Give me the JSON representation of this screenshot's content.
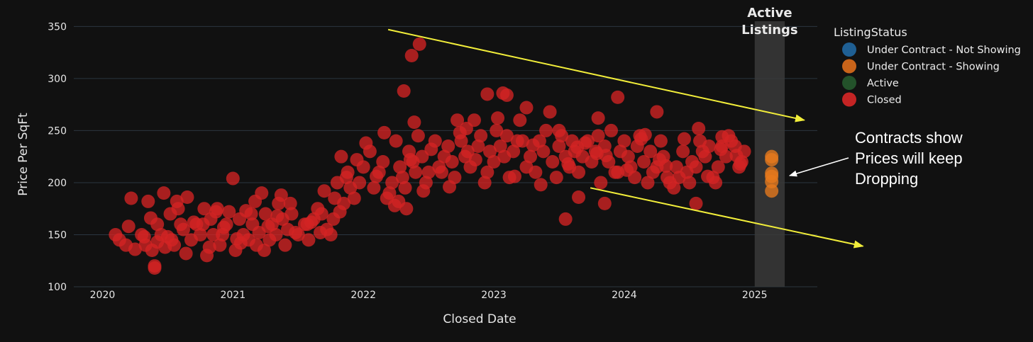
{
  "chart_data": {
    "type": "scatter",
    "title": "",
    "xlabel": "Closed Date",
    "ylabel": "Price Per SqFt",
    "xlim": [
      2019.78,
      2025.48
    ],
    "ylim": [
      100,
      355
    ],
    "x_ticks": [
      "2020",
      "2021",
      "2022",
      "2023",
      "2024",
      "2025"
    ],
    "y_ticks": [
      "100",
      "150",
      "200",
      "250",
      "300",
      "350"
    ],
    "grid": true,
    "legend": {
      "title": "ListingStatus",
      "position": "top-right",
      "entries": [
        {
          "name": "Under Contract - Not Showing",
          "color": "#1f5f93",
          "muted": false
        },
        {
          "name": "Under Contract - Showing",
          "color": "#c9641a",
          "muted": false
        },
        {
          "name": "Active",
          "color": "#23522a",
          "muted": true
        },
        {
          "name": "Closed",
          "color": "#c42424",
          "muted": false
        }
      ]
    },
    "active_band": {
      "label_lines": [
        "Active",
        "Listings"
      ],
      "x_range": [
        2025.0,
        2025.23
      ]
    },
    "annotation": {
      "lines": [
        "Contracts show",
        "Prices will keep",
        "Dropping"
      ]
    },
    "trend_lines": [
      {
        "from": [
          2022.19,
          347
        ],
        "to": [
          2025.38,
          260
        ]
      },
      {
        "from": [
          2023.74,
          195
        ],
        "to": [
          2025.83,
          139
        ]
      }
    ],
    "series": [
      {
        "name": "Under Contract - Showing",
        "color": "#e87a1c",
        "x": [
          2025.13,
          2025.13,
          2025.13,
          2025.13,
          2025.13,
          2025.13
        ],
        "y": [
          225,
          222,
          209,
          206,
          201,
          192
        ]
      },
      {
        "name": "Closed",
        "color": "#d42424",
        "x": [
          2020.1,
          2020.13,
          2020.18,
          2020.22,
          2020.3,
          2020.33,
          2020.35,
          2020.38,
          2020.4,
          2020.42,
          2020.42,
          2020.45,
          2020.47,
          2020.5,
          2020.52,
          2020.55,
          2020.57,
          2020.6,
          2020.62,
          2020.65,
          2020.68,
          2020.72,
          2020.75,
          2020.78,
          2020.8,
          2020.83,
          2020.85,
          2020.88,
          2020.9,
          2020.92,
          2020.95,
          2020.97,
          2021.0,
          2021.02,
          2021.05,
          2021.08,
          2021.1,
          2021.12,
          2021.15,
          2021.18,
          2021.2,
          2021.22,
          2021.25,
          2021.28,
          2021.3,
          2021.33,
          2021.35,
          2021.38,
          2021.4,
          2021.42,
          2021.45,
          2021.5,
          2021.55,
          2021.58,
          2021.62,
          2021.65,
          2021.68,
          2021.72,
          2021.75,
          2021.78,
          2021.8,
          2021.83,
          2021.85,
          2021.88,
          2021.9,
          2021.93,
          2021.97,
          2022.0,
          2022.05,
          2022.08,
          2022.12,
          2022.15,
          2022.18,
          2022.2,
          2022.22,
          2022.25,
          2022.28,
          2022.3,
          2022.32,
          2022.33,
          2022.35,
          2022.38,
          2022.4,
          2022.42,
          2022.45,
          2022.48,
          2022.5,
          2022.55,
          2022.58,
          2022.62,
          2022.65,
          2022.68,
          2022.7,
          2022.72,
          2022.75,
          2022.78,
          2022.8,
          2022.82,
          2022.85,
          2022.88,
          2022.9,
          2022.95,
          2022.97,
          2023.0,
          2023.02,
          2023.05,
          2023.08,
          2023.1,
          2023.12,
          2023.15,
          2023.18,
          2023.2,
          2023.25,
          2023.28,
          2023.32,
          2023.35,
          2023.38,
          2023.4,
          2023.45,
          2023.48,
          2023.5,
          2023.52,
          2023.55,
          2023.58,
          2023.6,
          2023.62,
          2023.65,
          2023.68,
          2023.72,
          2023.75,
          2023.78,
          2023.8,
          2023.82,
          2023.85,
          2023.88,
          2023.9,
          2023.93,
          2023.97,
          2024.0,
          2024.03,
          2024.05,
          2024.08,
          2024.1,
          2024.12,
          2024.15,
          2024.18,
          2024.2,
          2024.22,
          2024.25,
          2024.28,
          2024.3,
          2024.33,
          2024.35,
          2024.38,
          2024.4,
          2024.45,
          2024.48,
          2024.5,
          2024.52,
          2024.55,
          2024.58,
          2024.6,
          2024.62,
          2024.65,
          2024.68,
          2024.7,
          2024.72,
          2024.75,
          2024.78,
          2024.8,
          2024.82,
          2024.85,
          2024.88,
          2024.9,
          2024.92,
          2020.2,
          2020.32,
          2020.48,
          2020.58,
          2020.7,
          2020.82,
          2020.93,
          2021.06,
          2021.17,
          2021.27,
          2021.37,
          2021.48,
          2021.6,
          2021.7,
          2021.82,
          2021.95,
          2022.1,
          2022.24,
          2022.36,
          2022.46,
          2022.6,
          2022.74,
          2022.86,
          2023.03,
          2023.16,
          2023.3,
          2023.43,
          2023.57,
          2023.7,
          2023.86,
          2024.02,
          2024.16,
          2024.32,
          2024.46,
          2024.64,
          2024.86,
          2020.25,
          2020.37,
          2020.53,
          2020.64,
          2020.77,
          2020.87,
          2021.03,
          2021.14,
          2021.24,
          2021.34,
          2021.44,
          2021.57,
          2021.67,
          2021.77,
          2021.87,
          2022.02,
          2022.16,
          2022.27,
          2022.39,
          2022.52,
          2022.66,
          2022.79,
          2022.93,
          2023.07,
          2023.22,
          2023.36,
          2023.5,
          2023.64,
          2023.79,
          2023.95,
          2024.13,
          2024.27,
          2024.42,
          2024.57,
          2024.74,
          2024.89,
          2022.37,
          2022.43,
          2022.31,
          2023.95,
          2023.8,
          2023.55,
          2023.65,
          2023.85,
          2024.55,
          2020.4,
          2022.95,
          2023.1,
          2023.25,
          2024.25,
          2024.75
        ],
        "y": [
          150,
          145,
          140,
          185,
          150,
          140,
          182,
          135,
          120,
          160,
          143,
          150,
          190,
          148,
          170,
          140,
          182,
          160,
          155,
          186,
          145,
          160,
          150,
          175,
          130,
          165,
          150,
          175,
          140,
          150,
          160,
          172,
          204,
          135,
          165,
          150,
          173,
          145,
          160,
          140,
          152,
          190,
          170,
          145,
          160,
          150,
          180,
          165,
          140,
          155,
          170,
          150,
          160,
          145,
          165,
          175,
          170,
          155,
          150,
          185,
          200,
          225,
          180,
          210,
          195,
          185,
          200,
          215,
          230,
          195,
          210,
          220,
          185,
          190,
          200,
          240,
          215,
          205,
          195,
          175,
          230,
          220,
          210,
          245,
          225,
          200,
          210,
          240,
          215,
          225,
          235,
          220,
          205,
          260,
          240,
          225,
          230,
          215,
          260,
          235,
          245,
          210,
          230,
          220,
          250,
          235,
          225,
          245,
          205,
          230,
          240,
          260,
          215,
          225,
          210,
          240,
          230,
          250,
          220,
          205,
          235,
          245,
          225,
          215,
          240,
          230,
          210,
          225,
          240,
          220,
          230,
          245,
          200,
          235,
          220,
          250,
          210,
          230,
          240,
          225,
          215,
          205,
          235,
          245,
          220,
          200,
          230,
          210,
          215,
          240,
          225,
          205,
          200,
          195,
          215,
          230,
          210,
          200,
          220,
          215,
          240,
          230,
          225,
          235,
          205,
          200,
          215,
          235,
          225,
          245,
          240,
          235,
          215,
          220,
          230,
          158,
          148,
          138,
          175,
          162,
          138,
          157,
          142,
          182,
          158,
          188,
          152,
          162,
          192,
          172,
          222,
          206,
          178,
          222,
          192,
          210,
          248,
          222,
          262,
          206,
          236,
          268,
          218,
          238,
          226,
          212,
          246,
          216,
          242,
          206,
          226,
          136,
          166,
          145,
          132,
          160,
          172,
          146,
          170,
          135,
          168,
          180,
          160,
          152,
          165,
          205,
          238,
          248,
          182,
          258,
          232,
          196,
          252,
          200,
          286,
          240,
          198,
          250,
          234,
          228,
          210,
          242,
          222,
          205,
          252,
          232,
          218,
          322,
          333,
          288,
          282,
          262,
          165,
          186,
          180,
          180,
          118,
          285,
          284,
          272,
          268,
          244
        ]
      }
    ]
  }
}
